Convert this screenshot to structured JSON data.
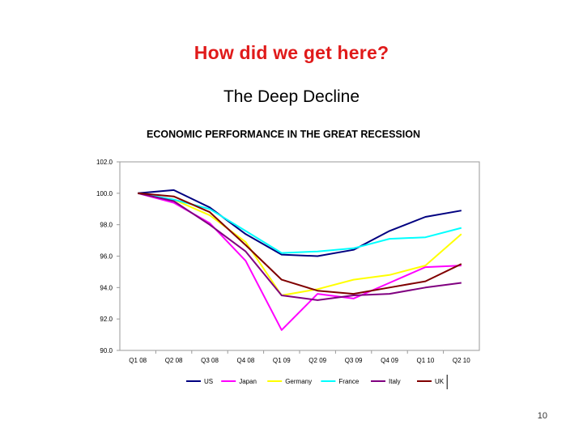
{
  "slide": {
    "title": "How did we get here?",
    "title_color": "#e01a1a",
    "subtitle": "The Deep Decline",
    "page_number": "10"
  },
  "chart_data": {
    "type": "line",
    "title": "ECONOMIC PERFORMANCE IN THE GREAT RECESSION",
    "xlabel": "",
    "ylabel": "",
    "categories": [
      "Q1 08",
      "Q2 08",
      "Q3 08",
      "Q4 08",
      "Q1 09",
      "Q2 09",
      "Q3 09",
      "Q4 09",
      "Q1 10",
      "Q2 10"
    ],
    "ylim": [
      90.0,
      102.0
    ],
    "yticks": [
      "90.0",
      "92.0",
      "94.0",
      "96.0",
      "98.0",
      "100.0",
      "102.0"
    ],
    "grid": false,
    "legend_position": "bottom",
    "series": [
      {
        "name": "US",
        "color": "#000080",
        "values": [
          100.0,
          100.2,
          99.1,
          97.4,
          96.1,
          96.0,
          96.4,
          97.6,
          98.5,
          98.9
        ]
      },
      {
        "name": "Japan",
        "color": "#ff00ff",
        "values": [
          100.0,
          99.4,
          98.1,
          95.7,
          91.3,
          93.6,
          93.3,
          94.3,
          95.3,
          95.4
        ]
      },
      {
        "name": "Germany",
        "color": "#ffff00",
        "values": [
          100.0,
          99.6,
          98.6,
          96.9,
          93.5,
          93.9,
          94.5,
          94.8,
          95.4,
          97.4
        ]
      },
      {
        "name": "France",
        "color": "#00ffff",
        "values": [
          100.0,
          99.6,
          99.0,
          97.6,
          96.2,
          96.3,
          96.5,
          97.1,
          97.2,
          97.8
        ]
      },
      {
        "name": "Italy",
        "color": "#800080",
        "values": [
          100.0,
          99.5,
          98.0,
          96.3,
          93.5,
          93.2,
          93.5,
          93.6,
          94.0,
          94.3
        ]
      },
      {
        "name": "UK",
        "color": "#800000",
        "values": [
          100.0,
          99.8,
          98.8,
          96.7,
          94.5,
          93.8,
          93.6,
          94.0,
          94.4,
          95.5
        ]
      }
    ]
  }
}
